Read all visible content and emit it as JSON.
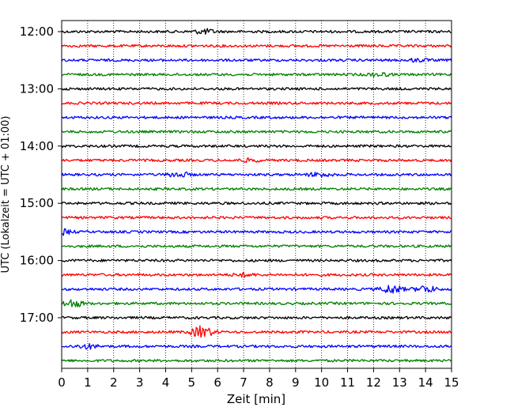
{
  "chart_data": {
    "type": "line",
    "xlabel": "Zeit  [min]",
    "ylabel": "UTC (Lokalzeit = UTC + 01:00)",
    "xlim": [
      0,
      15
    ],
    "x_ticks": [
      "0",
      "1",
      "2",
      "3",
      "4",
      "5",
      "6",
      "7",
      "8",
      "9",
      "10",
      "11",
      "12",
      "13",
      "14",
      "15"
    ],
    "y_ticks": [
      {
        "label": "12:00",
        "trace": 0
      },
      {
        "label": "13:00",
        "trace": 4
      },
      {
        "label": "14:00",
        "trace": 8
      },
      {
        "label": "15:00",
        "trace": 12
      },
      {
        "label": "16:00",
        "trace": 16
      },
      {
        "label": "17:00",
        "trace": 20
      }
    ],
    "grid": "vertical-dotted",
    "trace_minutes": 15,
    "trace_colors": [
      "#000000",
      "#ff0000",
      "#0000ff",
      "#008000"
    ],
    "trace_count": 24,
    "events": [
      {
        "trace": 0,
        "minute": 5.5,
        "amp": 0.5
      },
      {
        "trace": 2,
        "minute": 13.7,
        "amp": 0.3
      },
      {
        "trace": 3,
        "minute": 12.2,
        "amp": 0.4
      },
      {
        "trace": 9,
        "minute": 7.2,
        "amp": 0.3
      },
      {
        "trace": 10,
        "minute": 4.5,
        "amp": 0.6
      },
      {
        "trace": 10,
        "minute": 9.9,
        "amp": 0.5
      },
      {
        "trace": 14,
        "minute": 0.0,
        "amp": 0.6
      },
      {
        "trace": 17,
        "minute": 7.0,
        "amp": 0.4
      },
      {
        "trace": 18,
        "minute": 12.7,
        "amp": 1.0
      },
      {
        "trace": 18,
        "minute": 14.0,
        "amp": 0.8
      },
      {
        "trace": 19,
        "minute": 0.4,
        "amp": 0.9
      },
      {
        "trace": 21,
        "minute": 5.4,
        "amp": 1.4
      },
      {
        "trace": 22,
        "minute": 1.0,
        "amp": 0.5
      }
    ]
  }
}
